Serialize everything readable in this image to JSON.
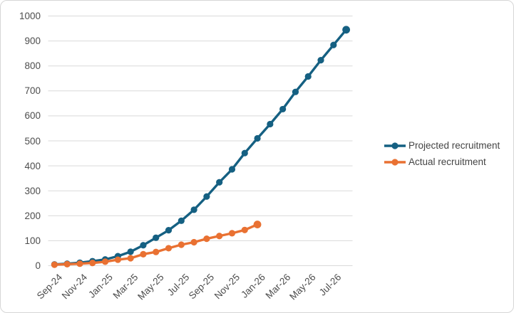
{
  "chart_data": {
    "type": "line",
    "title": "",
    "categories": [
      "Sep-24",
      "Oct-24",
      "Nov-24",
      "Dec-24",
      "Jan-25",
      "Feb-25",
      "Mar-25",
      "Apr-25",
      "May-25",
      "Jun-25",
      "Jul-25",
      "Aug-25",
      "Sep-25",
      "Oct-25",
      "Nov-25",
      "Dec-25",
      "Jan-26",
      "Feb-26",
      "Mar-26",
      "Apr-26",
      "May-26",
      "Jun-26",
      "Jul-26",
      "Aug-26"
    ],
    "x_tick_labels": [
      "Sep-24",
      "Nov-24",
      "Jan-25",
      "Mar-25",
      "May-25",
      "Jul-25",
      "Sep-25",
      "Nov-25",
      "Jan-26",
      "Mar-26",
      "May-26",
      "Jul-26"
    ],
    "x_tick_step": 2,
    "series": [
      {
        "name": "Projected recruitment",
        "color": "#156082",
        "values": [
          5,
          8,
          12,
          18,
          25,
          38,
          56,
          82,
          112,
          142,
          180,
          224,
          277,
          334,
          386,
          451,
          510,
          567,
          627,
          696,
          758,
          823,
          884,
          945
        ]
      },
      {
        "name": "Actual recruitment",
        "color": "#E97132",
        "values": [
          4,
          6,
          8,
          11,
          16,
          24,
          30,
          46,
          55,
          70,
          84,
          94,
          108,
          119,
          130,
          143,
          165
        ]
      }
    ],
    "ylim": [
      0,
      1000
    ],
    "y_ticks": [
      0,
      100,
      200,
      300,
      400,
      500,
      600,
      700,
      800,
      900,
      1000
    ],
    "grid": "horizontal",
    "gridline_color": "#D9D9D9",
    "legend_position": "right"
  }
}
